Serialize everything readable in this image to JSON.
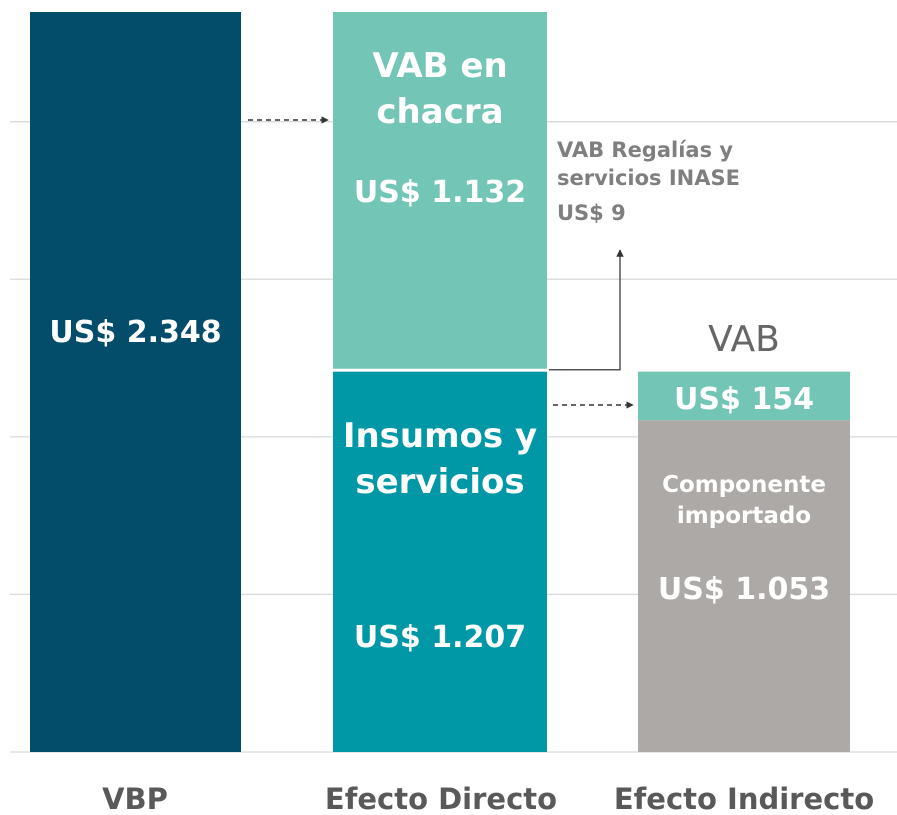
{
  "chart_data": {
    "type": "stacked-bar",
    "categories": [
      "VBP",
      "Efecto Directo",
      "Efecto Indirecto"
    ],
    "series": [
      {
        "color": "#034d6a",
        "values": [
          2348,
          null,
          null
        ],
        "value_labels": [
          "US$ 2.348",
          null,
          null
        ]
      },
      {
        "name": "Insumos y servicios",
        "color": "#0097a7",
        "values": [
          null,
          1207,
          null
        ],
        "value_labels": [
          null,
          "US$ 1.207",
          null
        ]
      },
      {
        "name": "VAB Regalías y servicios INASE",
        "color": "#ffffff",
        "values": [
          null,
          9,
          null
        ],
        "value_labels": [
          null,
          "US$ 9",
          null
        ]
      },
      {
        "name": "VAB en chacra",
        "color": "#73c5b5",
        "values": [
          null,
          1132,
          null
        ],
        "value_labels": [
          null,
          "US$ 1.132",
          null
        ]
      },
      {
        "name": "Componente importado",
        "color": "#ada9a6",
        "values": [
          null,
          null,
          1053
        ],
        "value_labels": [
          null,
          null,
          "US$ 1.053"
        ]
      },
      {
        "name": "VAB",
        "color": "#73c5b5",
        "values": [
          null,
          null,
          154
        ],
        "value_labels": [
          null,
          null,
          "US$ 154"
        ]
      }
    ],
    "ylim": [
      0,
      2348
    ],
    "yticks": [
      0,
      500,
      1000,
      1500,
      2000
    ],
    "grid": true
  }
}
